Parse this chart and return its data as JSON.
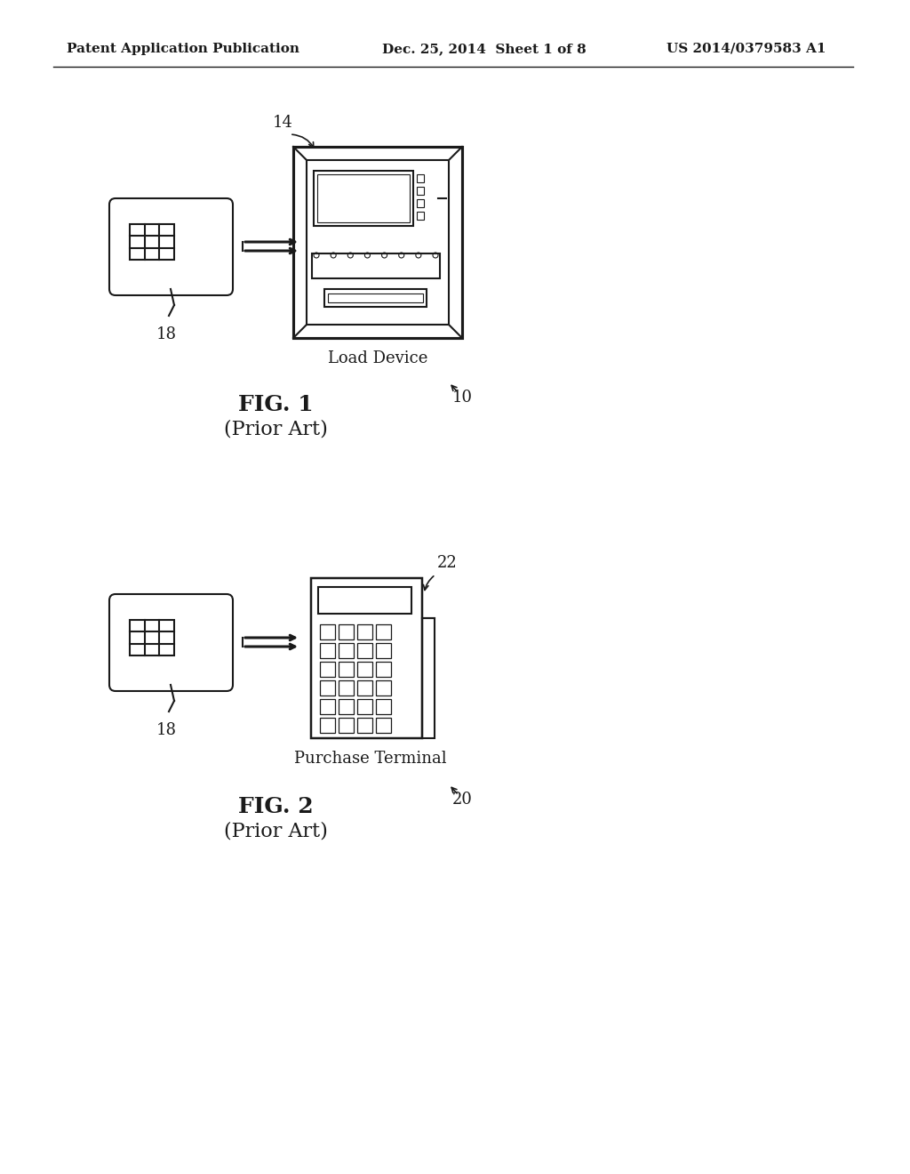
{
  "background_color": "#ffffff",
  "header_left": "Patent Application Publication",
  "header_center": "Dec. 25, 2014  Sheet 1 of 8",
  "header_right": "US 2014/0379583 A1",
  "header_fontsize": 11,
  "fig1_title": "FIG. 1",
  "fig1_subtitle": "(Prior Art)",
  "fig1_label_device": "Load Device",
  "fig1_label_14": "14",
  "fig1_label_18": "18",
  "fig1_label_10": "10",
  "fig2_title": "FIG. 2",
  "fig2_subtitle": "(Prior Art)",
  "fig2_label_terminal": "Purchase Terminal",
  "fig2_label_22": "22",
  "fig2_label_18b": "18",
  "fig2_label_20": "20",
  "line_color": "#1a1a1a",
  "line_width": 1.5,
  "text_color": "#1a1a1a"
}
